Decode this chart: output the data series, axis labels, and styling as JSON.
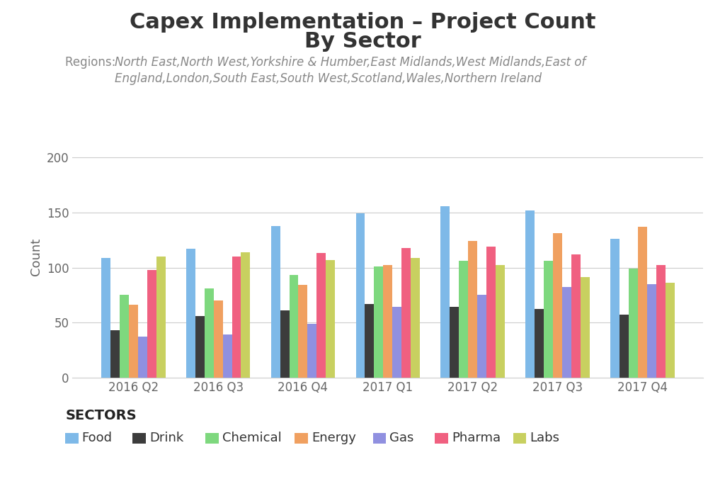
{
  "title_line1": "Capex Implementation – Project Count",
  "title_line2": "By Sector",
  "subtitle_prefix": "Regions: ",
  "subtitle_italic": "North East,North West,Yorkshire & Humber,East Midlands,West Midlands,East of England,London,South East,South West,Scotland,Wales,Northern Ireland",
  "ylabel": "Count",
  "quarters": [
    "2016 Q2",
    "2016 Q3",
    "2016 Q4",
    "2017 Q1",
    "2017 Q2",
    "2017 Q3",
    "2017 Q4"
  ],
  "sectors": [
    "Food",
    "Drink",
    "Chemical",
    "Energy",
    "Gas",
    "Pharma",
    "Labs"
  ],
  "colors": [
    "#7EB9E8",
    "#3C3C3C",
    "#7ED87E",
    "#F0A060",
    "#9090E0",
    "#F06080",
    "#C8D060"
  ],
  "data": {
    "Food": [
      109,
      117,
      138,
      149,
      156,
      152,
      126
    ],
    "Drink": [
      43,
      56,
      61,
      67,
      64,
      62,
      57
    ],
    "Chemical": [
      75,
      81,
      93,
      101,
      106,
      106,
      99
    ],
    "Energy": [
      66,
      70,
      84,
      102,
      124,
      131,
      137
    ],
    "Gas": [
      37,
      39,
      49,
      64,
      75,
      82,
      85
    ],
    "Pharma": [
      98,
      110,
      113,
      118,
      119,
      112,
      102
    ],
    "Labs": [
      110,
      114,
      107,
      109,
      102,
      91,
      86
    ]
  },
  "ylim": [
    0,
    220
  ],
  "yticks": [
    0,
    50,
    100,
    150,
    200
  ],
  "legend_title": "SECTORS",
  "background_color": "#FFFFFF",
  "grid_color": "#CCCCCC",
  "title_fontsize": 22,
  "subtitle_fontsize": 12,
  "axis_label_fontsize": 13,
  "tick_fontsize": 12,
  "legend_fontsize": 13,
  "title_color": "#333333",
  "subtitle_color": "#888888",
  "tick_color": "#666666"
}
